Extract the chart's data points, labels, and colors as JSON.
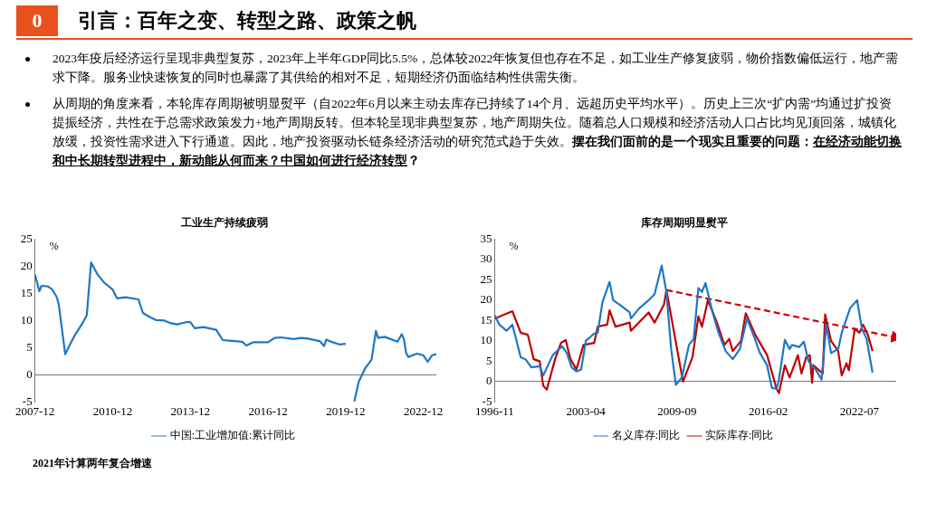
{
  "chart_data": [
    {
      "type": "other",
      "title": "引言：百年之变、转型之路、政策之帆",
      "annotations": [
        "0",
        "2023年疫后经济运行呈现非典型复苏，2023年上半年GDP同比5.5%，总体较2022年恢复但也存在不足，如工业生产修复疲弱，物价指数偏低运行，地产需求下降。服务业快速恢复的同时也暴露了其供给的相对不足，短期经济仍面临结构性供需失衡。",
        "从周期的角度来看，本轮库存周期被明显熨平（自2022年6月以来主动去库存已持续了14个月、远超历史平均水平）。历史上三次“扩内需”均通过扩投资提振经济，共性在于总需求政策发力+地产周期反转。但本轮呈现非典型复苏，地产周期失位。随着总人口规模和经济活动人口占比均见顶回落，城镇化放缓，投资性需求进入下行通道。因此，地产投资驱动长链条经济活动的研究范式趋于失效。",
        "摆在我们面前的是一个现实且重要的问题：",
        "在经济动能切换和中长期转型进程中，新动能从何而来？中国如何进行经济转型",
        "？"
      ]
    },
    {
      "type": "line",
      "title": "工业生产持续疲弱",
      "ylabel": "%",
      "legend": "bottom",
      "grid": false,
      "xlim": [
        "2007-12",
        "2023-06"
      ],
      "xticks": [
        "2007-12",
        "2010-12",
        "2013-12",
        "2016-12",
        "2019-12",
        "2022-12"
      ],
      "ylim": [
        -5,
        25
      ],
      "yticks": [
        -5,
        0,
        5,
        10,
        15,
        20,
        25
      ],
      "annotations": [
        "2021年计算两年复合增速"
      ],
      "series": [
        {
          "name": "中国:工业增加值:累计同比",
          "color": "#1f77c4",
          "x": [
            "2007-12",
            "2008-02",
            "2008-03",
            "2008-06",
            "2008-08",
            "2008-10",
            "2008-11",
            "2009-02",
            "2009-06",
            "2009-10",
            "2009-12",
            "2010-02",
            "2010-05",
            "2010-08",
            "2010-12",
            "2011-02",
            "2011-06",
            "2011-12",
            "2012-02",
            "2012-05",
            "2012-08",
            "2012-12",
            "2013-03",
            "2013-06",
            "2013-10",
            "2013-12",
            "2014-02",
            "2014-06",
            "2014-12",
            "2015-03",
            "2015-06",
            "2015-12",
            "2016-02",
            "2016-05",
            "2016-12",
            "2017-03",
            "2017-06",
            "2017-12",
            "2018-03",
            "2018-06",
            "2018-12",
            "2019-02",
            "2019-03",
            "2019-06",
            "2019-09",
            "2019-12",
            "2020-02",
            "2020-04",
            "2020-06",
            "2020-09",
            "2020-12",
            "2021-02",
            "2021-03",
            "2021-06",
            "2021-12",
            "2022-02",
            "2022-03",
            "2022-04",
            "2022-05",
            "2022-09",
            "2022-12",
            "2023-02",
            "2023-04",
            "2023-06"
          ],
          "values": [
            18.5,
            15.4,
            16.4,
            16.3,
            15.7,
            14.4,
            13,
            3.8,
            7,
            9.5,
            11,
            20.7,
            18.5,
            17,
            15.7,
            14.1,
            14.3,
            13.9,
            11.4,
            10.7,
            10.1,
            10,
            9.5,
            9.3,
            9.7,
            9.7,
            8.6,
            8.8,
            8.3,
            6.4,
            6.3,
            6.1,
            5.4,
            6,
            6,
            6.8,
            6.9,
            6.6,
            6.8,
            6.7,
            6.2,
            5.3,
            6.5,
            6,
            5.6,
            5.7,
            null,
            -4.9,
            -1.3,
            1.2,
            2.8,
            8.1,
            6.8,
            7,
            6.1,
            7.5,
            6.5,
            4,
            3.3,
            3.9,
            3.6,
            2.4,
            3.6,
            3.8
          ]
        }
      ]
    },
    {
      "type": "line",
      "title": "库存周期明显熨平",
      "ylabel": "%",
      "legend": "bottom",
      "grid": false,
      "xlim": [
        "1996-11",
        "2025-02"
      ],
      "xticks": [
        "1996-11",
        "2003-04",
        "2009-09",
        "2016-02",
        "2022-07"
      ],
      "ylim": [
        -5,
        35
      ],
      "yticks": [
        -5,
        0,
        5,
        10,
        15,
        20,
        25,
        30,
        35
      ],
      "series": [
        {
          "name": "名义库存:同比",
          "color": "#1f77c4",
          "x": [
            "1996-11",
            "1997-03",
            "1997-09",
            "1998-02",
            "1998-09",
            "1999-01",
            "1999-06",
            "2000-01",
            "2000-04",
            "2000-12",
            "2001-08",
            "2001-12",
            "2002-04",
            "2002-08",
            "2002-12",
            "2003-04",
            "2003-11",
            "2004-02",
            "2004-06",
            "2004-12",
            "2005-03",
            "2005-08",
            "2006-05",
            "2006-06",
            "2007-01",
            "2007-09",
            "2008-02",
            "2008-08",
            "2008-12",
            "2009-04",
            "2009-08",
            "2010-01",
            "2010-07",
            "2010-11",
            "2011-03",
            "2011-06",
            "2011-09",
            "2012-03",
            "2012-08",
            "2013-02",
            "2013-08",
            "2014-02",
            "2014-08",
            "2015-02",
            "2015-07",
            "2016-01",
            "2016-05",
            "2016-09",
            "2016-11",
            "2017-04",
            "2017-08",
            "2017-10",
            "2018-04",
            "2018-08",
            "2018-12",
            "2019-06",
            "2019-11",
            "2020-03",
            "2020-07",
            "2021-01",
            "2021-04",
            "2021-11",
            "2022-05",
            "2022-09",
            "2023-01",
            "2023-06"
          ],
          "values": [
            16.3,
            14,
            12.5,
            14,
            6,
            5.5,
            3.5,
            3.8,
            1.5,
            6.5,
            8.7,
            7,
            3.5,
            2.5,
            3,
            10,
            11.8,
            12,
            19.5,
            24.5,
            20,
            19,
            17,
            15.5,
            18,
            20,
            21.5,
            28.5,
            22,
            8,
            -0.8,
            1,
            9,
            10.5,
            23,
            22,
            24.2,
            17,
            12,
            7.5,
            5.5,
            8,
            15.5,
            11,
            7,
            4,
            -1.5,
            -1.8,
            0.5,
            10.3,
            8,
            9,
            8.5,
            9.8,
            5,
            3,
            0.5,
            14,
            7,
            8,
            12,
            18,
            20,
            13,
            10.5,
            2.2
          ]
        },
        {
          "name": "实际库存:同比",
          "color": "#c00000",
          "x": [
            "1996-11",
            "1998-02",
            "1998-09",
            "1999-03",
            "1999-08",
            "2000-01",
            "2000-04",
            "2000-07",
            "2001-02",
            "2001-07",
            "2001-11",
            "2002-03",
            "2002-08",
            "2003-02",
            "2003-11",
            "2004-02",
            "2004-10",
            "2004-12",
            "2005-05",
            "2006-05",
            "2006-06",
            "2007-09",
            "2008-02",
            "2008-10",
            "2008-12",
            "2010-02",
            "2010-10",
            "2011-03",
            "2011-06",
            "2011-11",
            "2012-06",
            "2013-01",
            "2013-05",
            "2013-08",
            "2014-03",
            "2014-07",
            "2015-03",
            "2016-01",
            "2016-09",
            "2016-11",
            "2017-04",
            "2017-08",
            "2018-03",
            "2018-06",
            "2018-10",
            "2019-01",
            "2019-03",
            "2019-04",
            "2019-12",
            "2020-02",
            "2020-07",
            "2021-01",
            "2021-04",
            "2021-08",
            "2021-10",
            "2022-03",
            "2022-07",
            "2022-10",
            "2023-02",
            "2023-06"
          ],
          "values": [
            15.5,
            17.3,
            12,
            11.5,
            5.5,
            5,
            -1,
            -2,
            5.5,
            9.5,
            10.2,
            5.5,
            3,
            9,
            9.5,
            13.5,
            14,
            17.5,
            13.5,
            14.5,
            12.5,
            17,
            14.5,
            19,
            22.5,
            0,
            6,
            16,
            13.5,
            20,
            15,
            9,
            10.5,
            7.5,
            10,
            16.8,
            11.5,
            6.5,
            -1.8,
            -2.8,
            4,
            1,
            6.5,
            2,
            6,
            6.5,
            -0.3,
            4,
            2,
            16.5,
            10,
            7.5,
            1.5,
            4.5,
            2.8,
            13,
            12,
            14,
            11.5,
            7.5
          ]
        },
        {
          "type": "line",
          "line_style": "dashed",
          "color": "#d00000",
          "x": [
            "2008-12",
            "2025-01"
          ],
          "values": [
            22.5,
            10.9
          ]
        }
      ]
    }
  ]
}
